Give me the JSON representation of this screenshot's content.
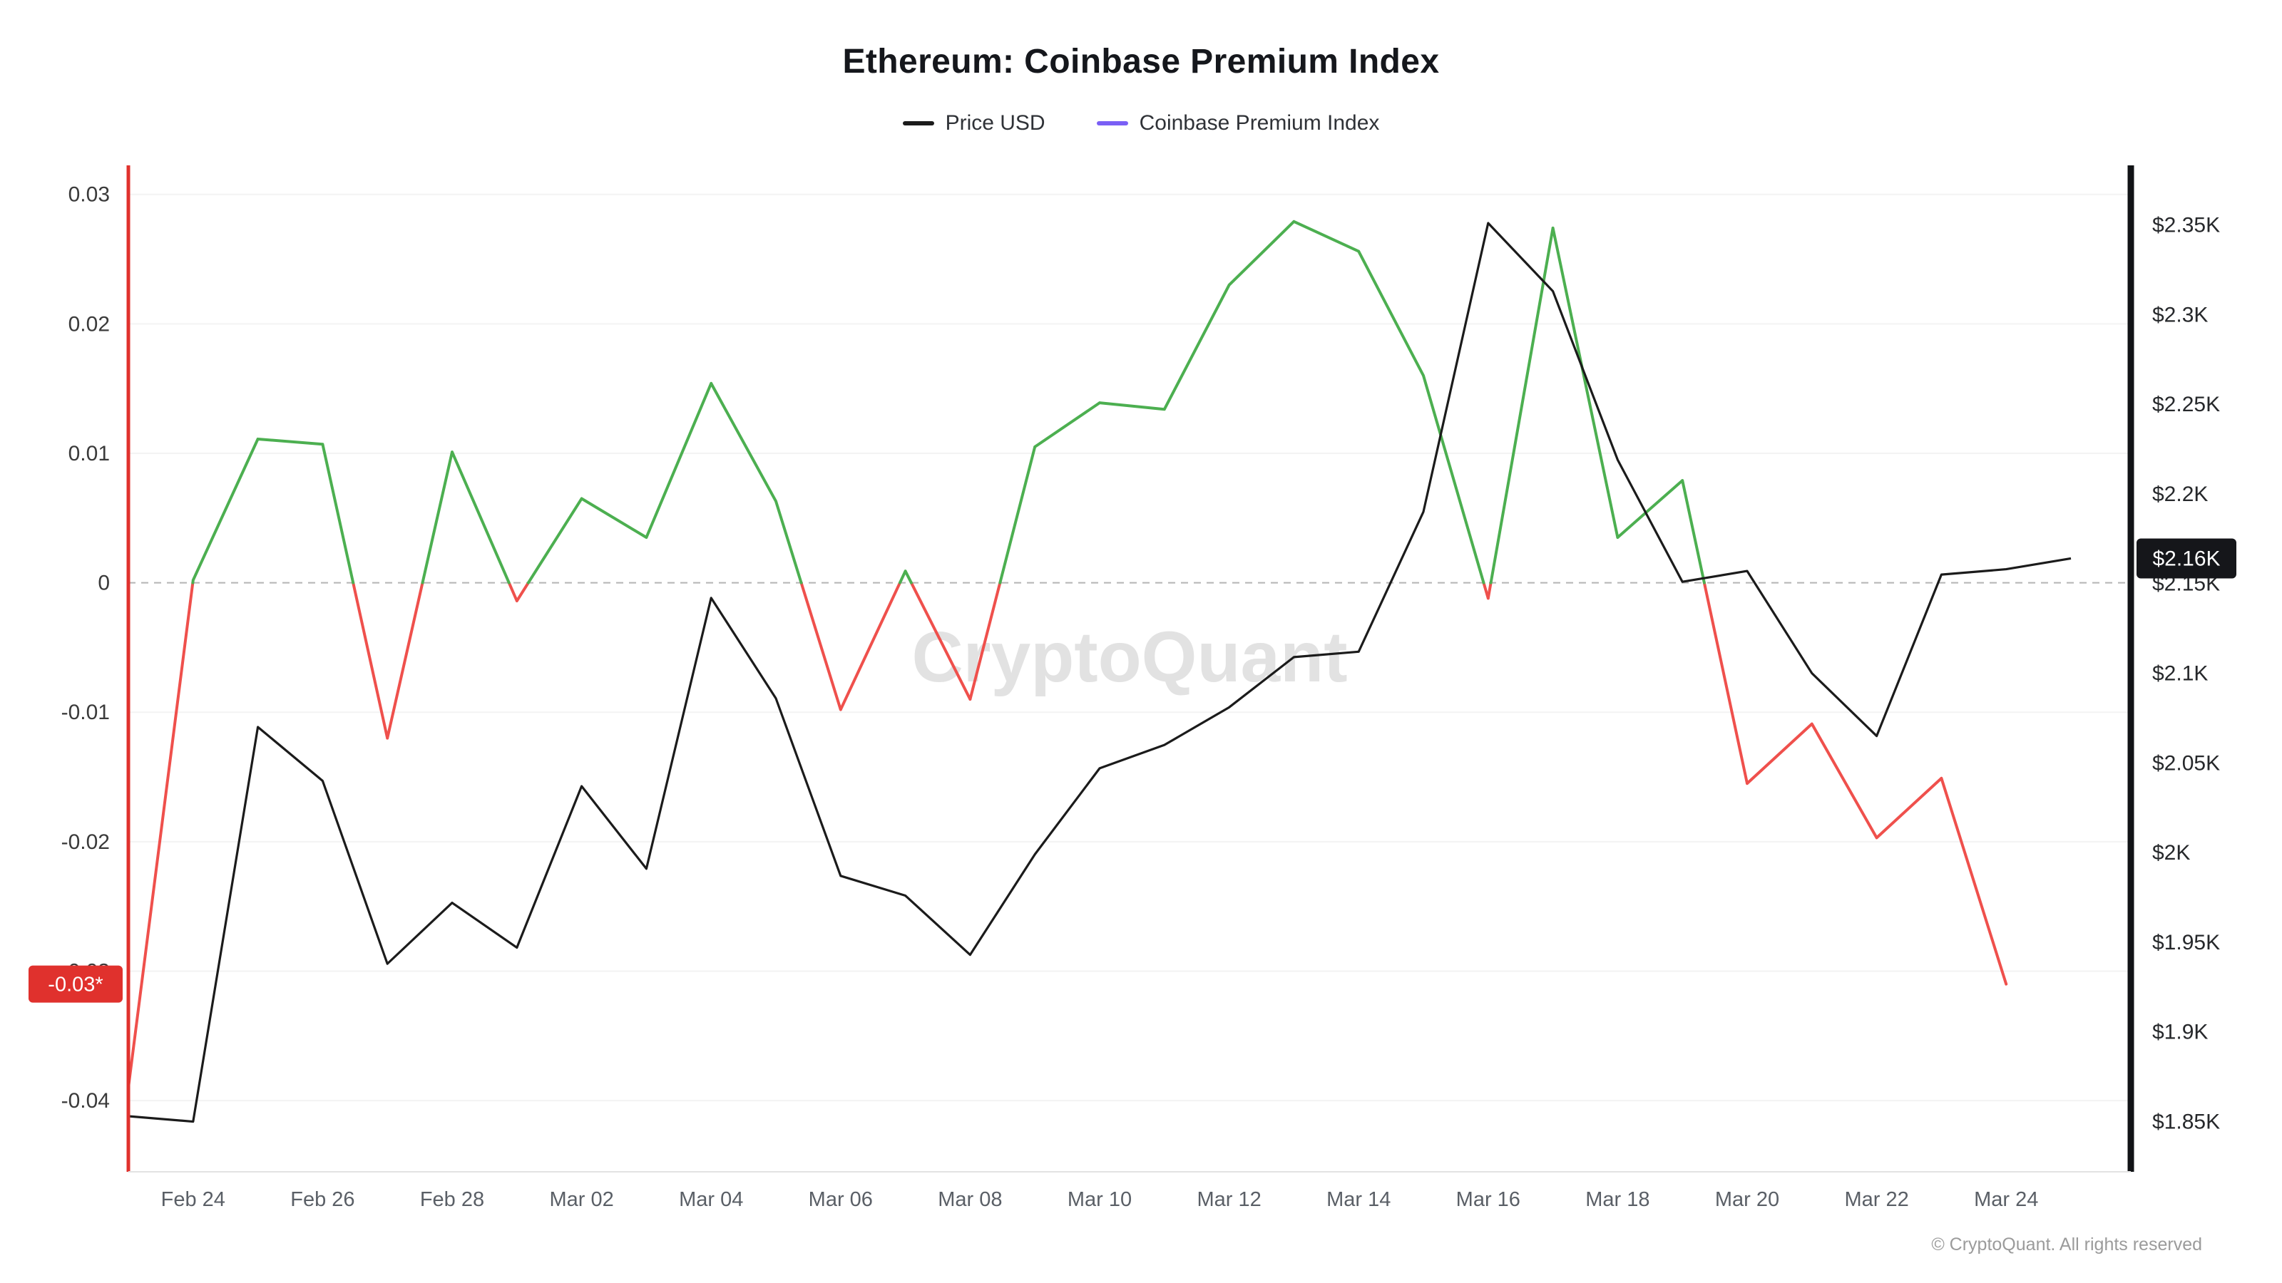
{
  "title": "Ethereum: Coinbase Premium Index",
  "legend": {
    "items": [
      {
        "label": "Price USD",
        "color": "#1b1b1b"
      },
      {
        "label": "Coinbase Premium Index",
        "color": "#7a5ff5"
      }
    ]
  },
  "watermark": "CryptoQuant",
  "footer": "© CryptoQuant. All rights reserved",
  "chart_data": {
    "type": "line",
    "title": "Ethereum: Coinbase Premium Index",
    "x": [
      "Feb 23",
      "Feb 24",
      "Feb 25",
      "Feb 26",
      "Feb 27",
      "Feb 28",
      "Mar 01",
      "Mar 02",
      "Mar 03",
      "Mar 04",
      "Mar 05",
      "Mar 06",
      "Mar 07",
      "Mar 08",
      "Mar 09",
      "Mar 10",
      "Mar 11",
      "Mar 12",
      "Mar 13",
      "Mar 14",
      "Mar 15",
      "Mar 16",
      "Mar 17",
      "Mar 18",
      "Mar 19",
      "Mar 20",
      "Mar 21",
      "Mar 22",
      "Mar 23",
      "Mar 24",
      "Mar 25"
    ],
    "x_tick_indices": [
      1,
      3,
      5,
      7,
      9,
      11,
      13,
      15,
      17,
      19,
      21,
      23,
      25,
      27,
      29
    ],
    "series": [
      {
        "name": "Coinbase Premium Index",
        "axis": "left",
        "coloring": "sign",
        "color_positive": "#4caf50",
        "color_negative": "#ef504c",
        "values": [
          -0.039,
          0.0002,
          0.0111,
          0.0107,
          -0.012,
          0.0101,
          -0.0014,
          0.0065,
          0.0035,
          0.0154,
          0.0063,
          -0.0098,
          0.0009,
          -0.009,
          0.0105,
          0.0139,
          0.0134,
          0.023,
          0.0279,
          0.0256,
          0.016,
          -0.0012,
          0.0274,
          0.0035,
          0.0079,
          -0.0155,
          -0.0109,
          -0.0197,
          -0.0151,
          -0.031,
          null
        ]
      },
      {
        "name": "Price USD",
        "axis": "right",
        "color": "#1b1b1b",
        "values": [
          1853,
          1850,
          2070,
          2040,
          1938,
          1972,
          1947,
          2037,
          1991,
          2142,
          2086,
          1987,
          1976,
          1943,
          1999,
          2047,
          2060,
          2081,
          2109,
          2112,
          2190,
          2351,
          2313,
          2219,
          2151,
          2157,
          2100,
          2065,
          2155,
          2158,
          2164
        ]
      }
    ],
    "left_axis": {
      "range": [
        -0.0455,
        0.0318
      ],
      "zero_line": 0,
      "axis_color": "#e0312d",
      "ticks": [
        {
          "v": 0.03,
          "label": "0.03"
        },
        {
          "v": 0.02,
          "label": "0.02"
        },
        {
          "v": 0.01,
          "label": "0.01"
        },
        {
          "v": 0,
          "label": "0"
        },
        {
          "v": -0.01,
          "label": "-0.01"
        },
        {
          "v": -0.02,
          "label": "-0.02"
        },
        {
          "v": -0.03,
          "label": "-0.03"
        },
        {
          "v": -0.04,
          "label": "-0.04"
        }
      ],
      "current_badge": {
        "label": "-0.03*",
        "value": -0.031,
        "bg": "#e0312d",
        "fg": "#ffffff"
      }
    },
    "right_axis": {
      "range": [
        1822,
        2380
      ],
      "axis_color": "#111316",
      "ticks": [
        {
          "v": 2350,
          "label": "$2.35K"
        },
        {
          "v": 2300,
          "label": "$2.3K"
        },
        {
          "v": 2250,
          "label": "$2.25K"
        },
        {
          "v": 2200,
          "label": "$2.2K"
        },
        {
          "v": 2150,
          "label": "$2.15K"
        },
        {
          "v": 2100,
          "label": "$2.1K"
        },
        {
          "v": 2050,
          "label": "$2.05K"
        },
        {
          "v": 2000,
          "label": "$2K"
        },
        {
          "v": 1950,
          "label": "$1.95K"
        },
        {
          "v": 1900,
          "label": "$1.9K"
        },
        {
          "v": 1850,
          "label": "$1.85K"
        }
      ],
      "current_badge": {
        "label": "$2.16K",
        "value": 2164,
        "bg": "#15161a",
        "fg": "#ffffff"
      }
    },
    "grid_color": "#f3f3f3",
    "zero_line_color": "#b4b4b4",
    "legend_position": "top",
    "grid": "horizontal-faint"
  }
}
